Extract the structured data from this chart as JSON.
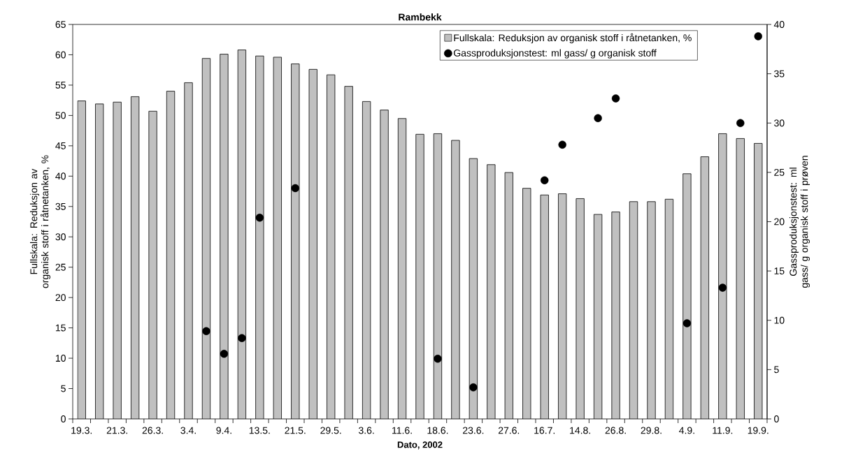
{
  "chart_data": {
    "type": "bar",
    "title": "Rambekk",
    "xlabel": "Dato, 2002",
    "ylabel": "Fullskala: Reduksjon av organisk stoff i råtnetanken, %",
    "y2label": "Gassproduksjonstest: ml gass/ g organisk stoff i prøven",
    "categories": [
      "19.3.",
      null,
      "21.3.",
      null,
      "26.3.",
      null,
      "3.4.",
      null,
      "9.4.",
      null,
      "13.5.",
      null,
      "21.5.",
      null,
      "29.5.",
      null,
      "3.6.",
      null,
      "11.6.",
      null,
      "18.6.",
      null,
      "23.6.",
      null,
      "27.6.",
      null,
      "16.7.",
      null,
      "14.8.",
      null,
      "26.8.",
      null,
      "29.8.",
      null,
      "4.9.",
      null,
      "11.9.",
      null,
      "19.9."
    ],
    "series": [
      {
        "name": "Fullskala: Reduksjon av organisk stoff i råtnetanken, %",
        "color": "#c0c0c0",
        "values": [
          52.4,
          51.9,
          52.2,
          53.1,
          50.7,
          54.0,
          55.4,
          59.4,
          60.1,
          60.8,
          59.8,
          59.6,
          58.5,
          57.6,
          56.7,
          54.8,
          52.3,
          50.9,
          49.5,
          46.9,
          47.0,
          45.9,
          42.9,
          41.9,
          40.6,
          38.0,
          36.9,
          37.1,
          36.3,
          33.7,
          34.1,
          35.8,
          35.8,
          36.2,
          40.4,
          43.2,
          47.0,
          46.2,
          45.4
        ]
      },
      {
        "name": "Gassproduksjonstest: ml gass/ g organisk stoff",
        "type": "scatter",
        "axis": "y2",
        "color": "#000000",
        "values": [
          null,
          null,
          null,
          null,
          null,
          null,
          null,
          8.9,
          6.6,
          8.2,
          20.4,
          null,
          23.4,
          null,
          null,
          null,
          null,
          null,
          null,
          null,
          6.1,
          null,
          3.2,
          null,
          null,
          null,
          24.2,
          27.8,
          null,
          30.5,
          32.5,
          null,
          null,
          null,
          9.7,
          null,
          13.3,
          30.0,
          38.8
        ]
      }
    ],
    "ylim": [
      0,
      65
    ],
    "yticks": [
      0,
      5,
      10,
      15,
      20,
      25,
      30,
      35,
      40,
      45,
      50,
      55,
      60,
      65
    ],
    "y2lim": [
      0,
      40
    ],
    "y2ticks": [
      0,
      5,
      10,
      15,
      20,
      25,
      30,
      35,
      40
    ],
    "legend": "top right",
    "marker": "circle"
  }
}
